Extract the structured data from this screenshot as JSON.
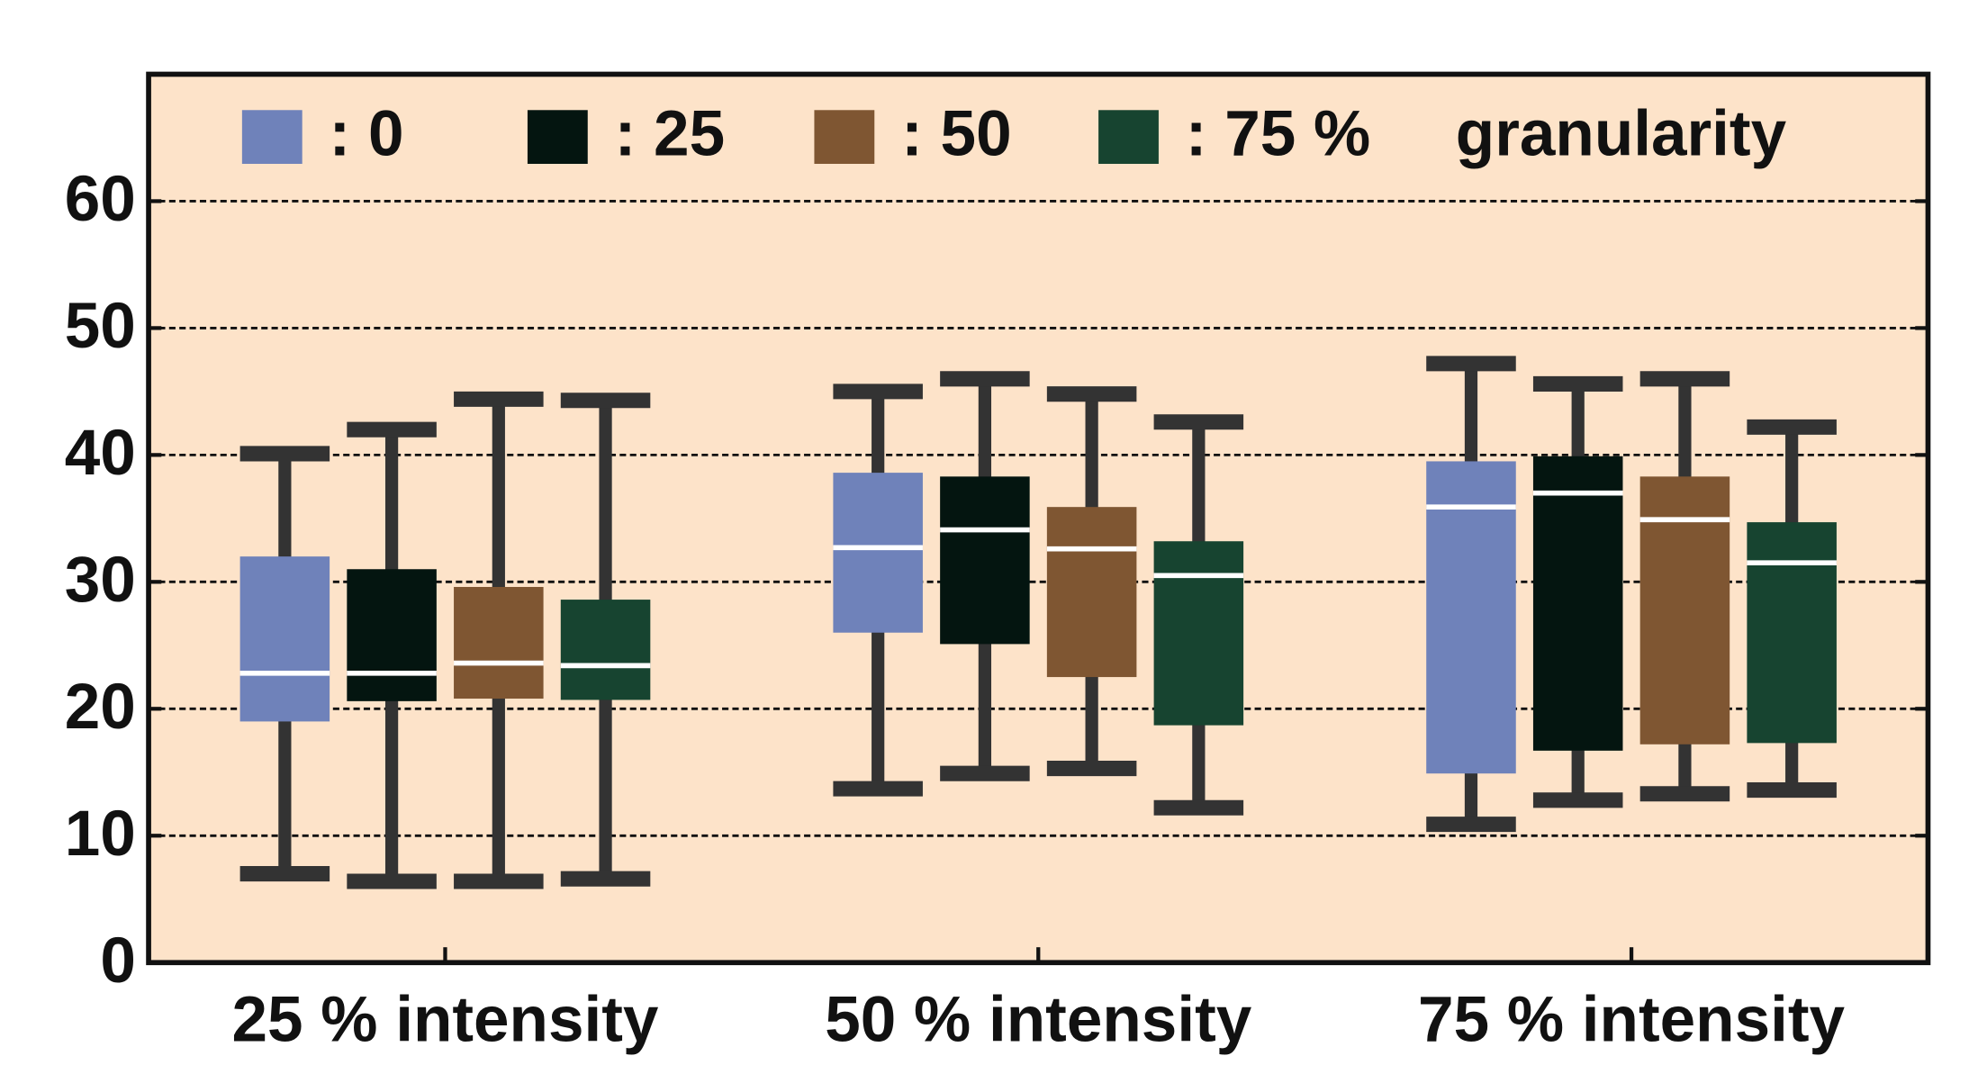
{
  "chart_data": {
    "type": "box",
    "categories": [
      "25 % intensity",
      "50 % intensity",
      "75 % intensity"
    ],
    "legend_title": "granularity",
    "series": [
      {
        "name": ": 0",
        "color": "#6f82ba",
        "values": [
          [
            7,
            19,
            22.8,
            32,
            40.1
          ],
          [
            13.7,
            26,
            32.7,
            38.6,
            45
          ],
          [
            10.9,
            14.9,
            35.9,
            39.5,
            47.2
          ]
        ]
      },
      {
        "name": ": 25",
        "color": "#041510",
        "values": [
          [
            6.4,
            20.6,
            22.8,
            31,
            42
          ],
          [
            14.9,
            25.1,
            34.1,
            38.3,
            46
          ],
          [
            12.8,
            16.7,
            37,
            39.9,
            45.6
          ]
        ]
      },
      {
        "name": ": 50",
        "color": "#7f5632",
        "values": [
          [
            6.4,
            20.8,
            23.6,
            29.6,
            44.4
          ],
          [
            15.3,
            22.5,
            32.6,
            35.9,
            44.8
          ],
          [
            13.3,
            17.2,
            34.9,
            38.3,
            46
          ]
        ]
      },
      {
        "name": ": 75 %",
        "color": "#174430",
        "values": [
          [
            6.6,
            20.7,
            23.4,
            28.6,
            44.3
          ],
          [
            12.2,
            18.7,
            30.5,
            33.2,
            42.6
          ],
          [
            13.6,
            17.3,
            31.5,
            34.7,
            42.2
          ]
        ]
      }
    ],
    "ylim": [
      0,
      70
    ],
    "yticks": [
      0,
      10,
      20,
      30,
      40,
      50,
      60
    ],
    "grid": true,
    "background": "#fde3c9",
    "whisker_color": "#333333"
  }
}
